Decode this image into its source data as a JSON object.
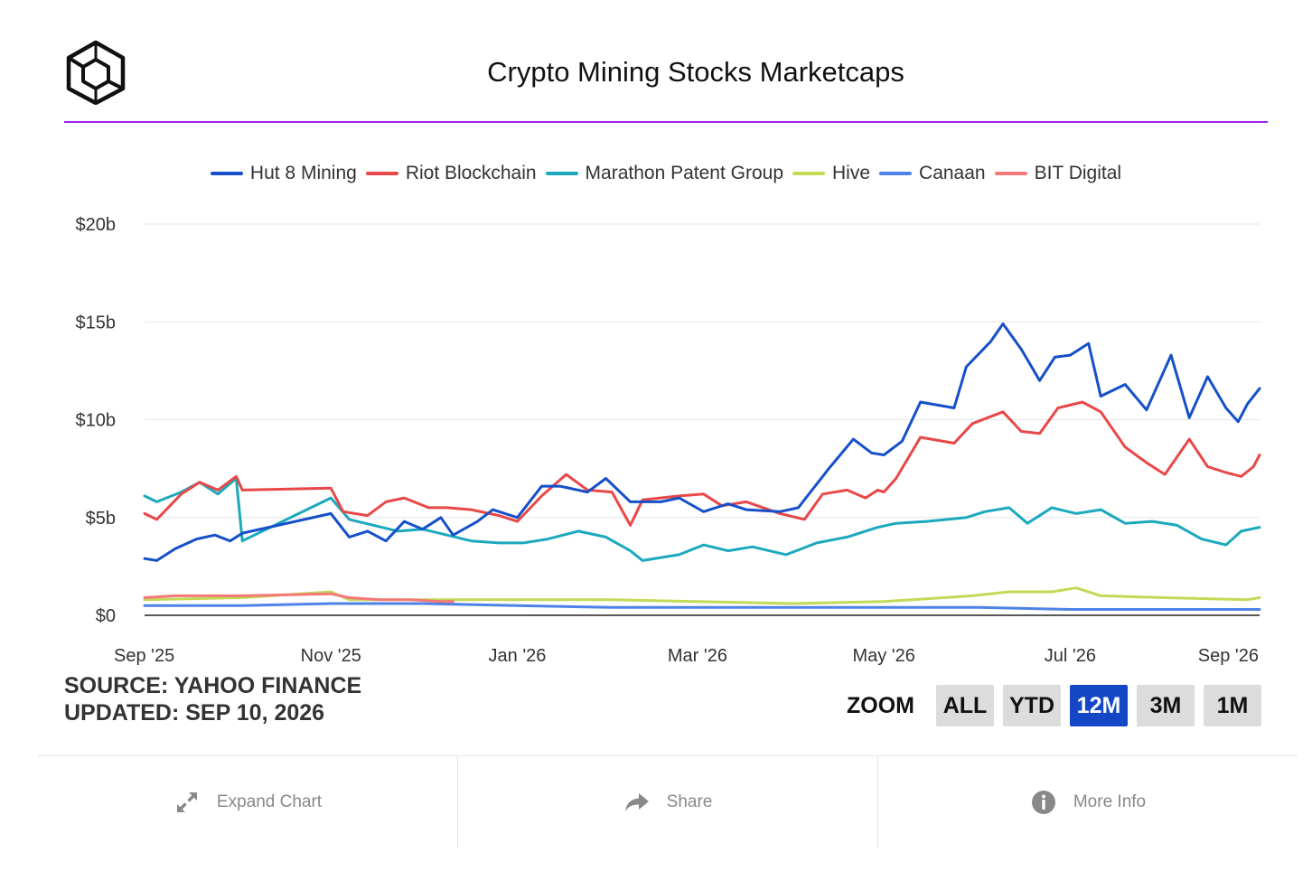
{
  "header": {
    "title": "Crypto Mining Stocks Marketcaps",
    "logo_icon": "cube-logo-icon"
  },
  "colors": {
    "rule": "#9b24e6",
    "grid": "#e6e6e6",
    "axis": "#222222",
    "active_zoom": "#1447c6"
  },
  "source": {
    "line1": "SOURCE: YAHOO FINANCE",
    "line2": "UPDATED: SEP 10, 2026"
  },
  "zoom": {
    "label": "ZOOM",
    "buttons": [
      "ALL",
      "YTD",
      "12M",
      "3M",
      "1M"
    ],
    "active": "12M"
  },
  "footer": [
    {
      "label": "Expand Chart",
      "icon": "expand-icon"
    },
    {
      "label": "Share",
      "icon": "share-arrow-icon"
    },
    {
      "label": "More Info",
      "icon": "info-icon"
    }
  ],
  "chart_data": {
    "type": "line",
    "title": "Crypto Mining Stocks Marketcaps",
    "xlabel": "",
    "ylabel": "",
    "y_unit": "billion USD",
    "ylim": [
      0,
      20
    ],
    "xlim": [
      "2025-09-10",
      "2026-09-10"
    ],
    "y_ticks": [
      {
        "value": 0,
        "label": "$0"
      },
      {
        "value": 5,
        "label": "$5b"
      },
      {
        "value": 10,
        "label": "$10b"
      },
      {
        "value": 15,
        "label": "$15b"
      },
      {
        "value": 20,
        "label": "$20b"
      }
    ],
    "x_ticks": [
      {
        "date": "2025-09-10",
        "label": "Sep '25"
      },
      {
        "date": "2025-11-10",
        "label": "Nov '25"
      },
      {
        "date": "2026-01-10",
        "label": "Jan '26"
      },
      {
        "date": "2026-03-10",
        "label": "Mar '26"
      },
      {
        "date": "2026-05-10",
        "label": "May '26"
      },
      {
        "date": "2026-07-10",
        "label": "Jul '26"
      },
      {
        "date": "2026-09-10",
        "label": "Sep '26"
      }
    ],
    "grid": true,
    "legend_position": "top-center",
    "series": [
      {
        "name": "Hut 8 Mining",
        "color": "#1650c8",
        "points": [
          [
            "2025-09-10",
            2.9
          ],
          [
            "2025-09-14",
            2.8
          ],
          [
            "2025-09-20",
            3.4
          ],
          [
            "2025-09-27",
            3.9
          ],
          [
            "2025-10-03",
            4.1
          ],
          [
            "2025-10-08",
            3.8
          ],
          [
            "2025-10-12",
            4.2
          ],
          [
            "2025-11-10",
            5.2
          ],
          [
            "2025-11-16",
            4.0
          ],
          [
            "2025-11-22",
            4.3
          ],
          [
            "2025-11-28",
            3.8
          ],
          [
            "2025-12-04",
            4.8
          ],
          [
            "2025-12-10",
            4.4
          ],
          [
            "2025-12-16",
            5.0
          ],
          [
            "2025-12-20",
            4.1
          ],
          [
            "2025-12-28",
            4.8
          ],
          [
            "2026-01-02",
            5.4
          ],
          [
            "2026-01-10",
            5.0
          ],
          [
            "2026-01-18",
            6.6
          ],
          [
            "2026-01-24",
            6.6
          ],
          [
            "2026-02-02",
            6.3
          ],
          [
            "2026-02-08",
            7.0
          ],
          [
            "2026-02-16",
            5.8
          ],
          [
            "2026-02-26",
            5.8
          ],
          [
            "2026-03-04",
            6.0
          ],
          [
            "2026-03-12",
            5.3
          ],
          [
            "2026-03-20",
            5.7
          ],
          [
            "2026-03-26",
            5.4
          ],
          [
            "2026-04-06",
            5.3
          ],
          [
            "2026-04-12",
            5.5
          ],
          [
            "2026-04-22",
            7.5
          ],
          [
            "2026-04-30",
            9.0
          ],
          [
            "2026-05-06",
            8.3
          ],
          [
            "2026-05-10",
            8.2
          ],
          [
            "2026-05-16",
            8.9
          ],
          [
            "2026-05-22",
            10.9
          ],
          [
            "2026-06-02",
            10.6
          ],
          [
            "2026-06-06",
            12.7
          ],
          [
            "2026-06-14",
            14.0
          ],
          [
            "2026-06-18",
            14.9
          ],
          [
            "2026-06-24",
            13.6
          ],
          [
            "2026-06-30",
            12.0
          ],
          [
            "2026-07-05",
            13.2
          ],
          [
            "2026-07-10",
            13.3
          ],
          [
            "2026-07-16",
            13.9
          ],
          [
            "2026-07-20",
            11.2
          ],
          [
            "2026-07-28",
            11.8
          ],
          [
            "2026-08-04",
            10.5
          ],
          [
            "2026-08-12",
            13.3
          ],
          [
            "2026-08-18",
            10.1
          ],
          [
            "2026-08-24",
            12.2
          ],
          [
            "2026-08-30",
            10.6
          ],
          [
            "2026-09-03",
            9.9
          ],
          [
            "2026-09-06",
            10.8
          ],
          [
            "2026-09-10",
            11.6
          ]
        ]
      },
      {
        "name": "Riot Blockchain",
        "color": "#e84848",
        "points": [
          [
            "2025-09-10",
            5.2
          ],
          [
            "2025-09-14",
            4.9
          ],
          [
            "2025-09-22",
            6.2
          ],
          [
            "2025-09-28",
            6.8
          ],
          [
            "2025-10-04",
            6.4
          ],
          [
            "2025-10-10",
            7.1
          ],
          [
            "2025-10-12",
            6.4
          ],
          [
            "2025-11-10",
            6.5
          ],
          [
            "2025-11-14",
            5.3
          ],
          [
            "2025-11-22",
            5.1
          ],
          [
            "2025-11-28",
            5.8
          ],
          [
            "2025-12-04",
            6.0
          ],
          [
            "2025-12-12",
            5.5
          ],
          [
            "2025-12-18",
            5.5
          ],
          [
            "2025-12-26",
            5.4
          ],
          [
            "2026-01-04",
            5.1
          ],
          [
            "2026-01-10",
            4.8
          ],
          [
            "2026-01-18",
            6.1
          ],
          [
            "2026-01-26",
            7.2
          ],
          [
            "2026-02-02",
            6.4
          ],
          [
            "2026-02-10",
            6.3
          ],
          [
            "2026-02-16",
            4.6
          ],
          [
            "2026-02-20",
            5.9
          ],
          [
            "2026-03-04",
            6.1
          ],
          [
            "2026-03-12",
            6.2
          ],
          [
            "2026-03-18",
            5.6
          ],
          [
            "2026-03-26",
            5.8
          ],
          [
            "2026-04-06",
            5.2
          ],
          [
            "2026-04-14",
            4.9
          ],
          [
            "2026-04-20",
            6.2
          ],
          [
            "2026-04-28",
            6.4
          ],
          [
            "2026-05-04",
            6.0
          ],
          [
            "2026-05-08",
            6.4
          ],
          [
            "2026-05-10",
            6.3
          ],
          [
            "2026-05-14",
            7.0
          ],
          [
            "2026-05-22",
            9.1
          ],
          [
            "2026-06-02",
            8.8
          ],
          [
            "2026-06-08",
            9.8
          ],
          [
            "2026-06-18",
            10.4
          ],
          [
            "2026-06-24",
            9.4
          ],
          [
            "2026-06-30",
            9.3
          ],
          [
            "2026-07-06",
            10.6
          ],
          [
            "2026-07-14",
            10.9
          ],
          [
            "2026-07-20",
            10.4
          ],
          [
            "2026-07-28",
            8.6
          ],
          [
            "2026-08-04",
            7.8
          ],
          [
            "2026-08-10",
            7.2
          ],
          [
            "2026-08-18",
            9.0
          ],
          [
            "2026-08-24",
            7.6
          ],
          [
            "2026-08-30",
            7.3
          ],
          [
            "2026-09-04",
            7.1
          ],
          [
            "2026-09-08",
            7.6
          ],
          [
            "2026-09-10",
            8.2
          ]
        ]
      },
      {
        "name": "Marathon Patent Group",
        "color": "#1ba9be",
        "points": [
          [
            "2025-09-10",
            6.1
          ],
          [
            "2025-09-14",
            5.8
          ],
          [
            "2025-09-22",
            6.3
          ],
          [
            "2025-09-28",
            6.8
          ],
          [
            "2025-10-04",
            6.2
          ],
          [
            "2025-10-10",
            7.0
          ],
          [
            "2025-10-12",
            3.8
          ],
          [
            "2025-11-10",
            6.0
          ],
          [
            "2025-11-16",
            4.9
          ],
          [
            "2025-11-24",
            4.6
          ],
          [
            "2025-12-02",
            4.3
          ],
          [
            "2025-12-10",
            4.4
          ],
          [
            "2025-12-18",
            4.1
          ],
          [
            "2025-12-26",
            3.8
          ],
          [
            "2026-01-04",
            3.7
          ],
          [
            "2026-01-12",
            3.7
          ],
          [
            "2026-01-20",
            3.9
          ],
          [
            "2026-01-30",
            4.3
          ],
          [
            "2026-02-08",
            4.0
          ],
          [
            "2026-02-16",
            3.3
          ],
          [
            "2026-02-20",
            2.8
          ],
          [
            "2026-03-04",
            3.1
          ],
          [
            "2026-03-12",
            3.6
          ],
          [
            "2026-03-20",
            3.3
          ],
          [
            "2026-03-28",
            3.5
          ],
          [
            "2026-04-08",
            3.1
          ],
          [
            "2026-04-18",
            3.7
          ],
          [
            "2026-04-28",
            4.0
          ],
          [
            "2026-05-08",
            4.5
          ],
          [
            "2026-05-14",
            4.7
          ],
          [
            "2026-05-24",
            4.8
          ],
          [
            "2026-06-06",
            5.0
          ],
          [
            "2026-06-12",
            5.3
          ],
          [
            "2026-06-20",
            5.5
          ],
          [
            "2026-06-26",
            4.7
          ],
          [
            "2026-07-04",
            5.5
          ],
          [
            "2026-07-12",
            5.2
          ],
          [
            "2026-07-20",
            5.4
          ],
          [
            "2026-07-28",
            4.7
          ],
          [
            "2026-08-06",
            4.8
          ],
          [
            "2026-08-14",
            4.6
          ],
          [
            "2026-08-22",
            3.9
          ],
          [
            "2026-08-30",
            3.6
          ],
          [
            "2026-09-04",
            4.3
          ],
          [
            "2026-09-10",
            4.5
          ]
        ]
      },
      {
        "name": "Hive",
        "color": "#c3d957",
        "points": [
          [
            "2025-09-10",
            0.8
          ],
          [
            "2025-10-12",
            0.9
          ],
          [
            "2025-11-10",
            1.2
          ],
          [
            "2025-11-16",
            0.8
          ],
          [
            "2025-12-10",
            0.8
          ],
          [
            "2026-01-10",
            0.8
          ],
          [
            "2026-02-10",
            0.8
          ],
          [
            "2026-03-10",
            0.7
          ],
          [
            "2026-04-10",
            0.6
          ],
          [
            "2026-05-10",
            0.7
          ],
          [
            "2026-06-08",
            1.0
          ],
          [
            "2026-06-20",
            1.2
          ],
          [
            "2026-07-04",
            1.2
          ],
          [
            "2026-07-12",
            1.4
          ],
          [
            "2026-07-20",
            1.0
          ],
          [
            "2026-08-10",
            0.9
          ],
          [
            "2026-09-06",
            0.8
          ],
          [
            "2026-09-10",
            0.9
          ]
        ]
      },
      {
        "name": "Canaan",
        "color": "#4d82e6",
        "points": [
          [
            "2025-09-10",
            0.5
          ],
          [
            "2025-10-12",
            0.5
          ],
          [
            "2025-11-10",
            0.6
          ],
          [
            "2025-12-10",
            0.6
          ],
          [
            "2026-01-10",
            0.5
          ],
          [
            "2026-02-10",
            0.4
          ],
          [
            "2026-03-10",
            0.4
          ],
          [
            "2026-04-10",
            0.4
          ],
          [
            "2026-05-10",
            0.4
          ],
          [
            "2026-06-10",
            0.4
          ],
          [
            "2026-07-10",
            0.3
          ],
          [
            "2026-08-10",
            0.3
          ],
          [
            "2026-09-10",
            0.3
          ]
        ]
      },
      {
        "name": "BIT Digital",
        "color": "#f47878",
        "points": [
          [
            "2025-09-10",
            0.9
          ],
          [
            "2025-09-20",
            1.0
          ],
          [
            "2025-10-01",
            1.0
          ],
          [
            "2025-10-12",
            1.0
          ],
          [
            "2025-11-10",
            1.1
          ],
          [
            "2025-11-16",
            0.9
          ],
          [
            "2025-11-26",
            0.8
          ],
          [
            "2025-12-06",
            0.8
          ],
          [
            "2025-12-16",
            0.7
          ],
          [
            "2025-12-20",
            0.7
          ]
        ]
      }
    ]
  }
}
